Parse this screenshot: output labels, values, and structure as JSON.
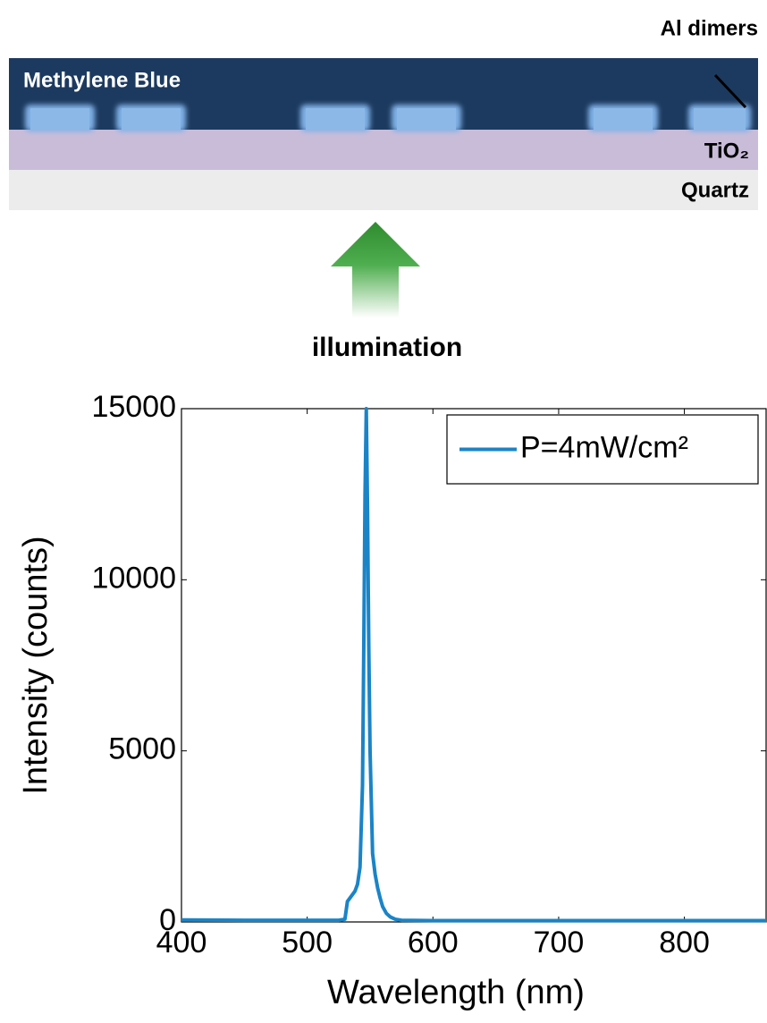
{
  "diagram": {
    "dimer_label": "Al dimers",
    "dye_label": "Methylene Blue",
    "layer_label": "TiO₂",
    "substrate_label": "Quartz",
    "light_label": "illumination"
  },
  "chart_data": {
    "type": "line",
    "xlabel": "Wavelength (nm)",
    "ylabel": "Intensity (counts)",
    "x": [
      400,
      450,
      500,
      525,
      530,
      532,
      535,
      538,
      540,
      542,
      544,
      545,
      546,
      547,
      548,
      549,
      550,
      552,
      554,
      556,
      558,
      560,
      563,
      566,
      570,
      575,
      600,
      700,
      800,
      865
    ],
    "series": [
      {
        "name": "P=4mW/cm²",
        "color": "#1a84c7",
        "values": [
          60,
          50,
          50,
          50,
          80,
          600,
          750,
          900,
          1100,
          1600,
          4000,
          8000,
          12500,
          15000,
          12000,
          8000,
          5000,
          2000,
          1400,
          1000,
          700,
          450,
          250,
          150,
          80,
          50,
          40,
          40,
          40,
          40
        ]
      }
    ],
    "xlim": [
      400,
      865
    ],
    "ylim": [
      0,
      15000
    ],
    "xticks": [
      400,
      500,
      600,
      700,
      800
    ],
    "yticks": [
      0,
      5000,
      10000,
      15000
    ],
    "legend": "upper right"
  }
}
